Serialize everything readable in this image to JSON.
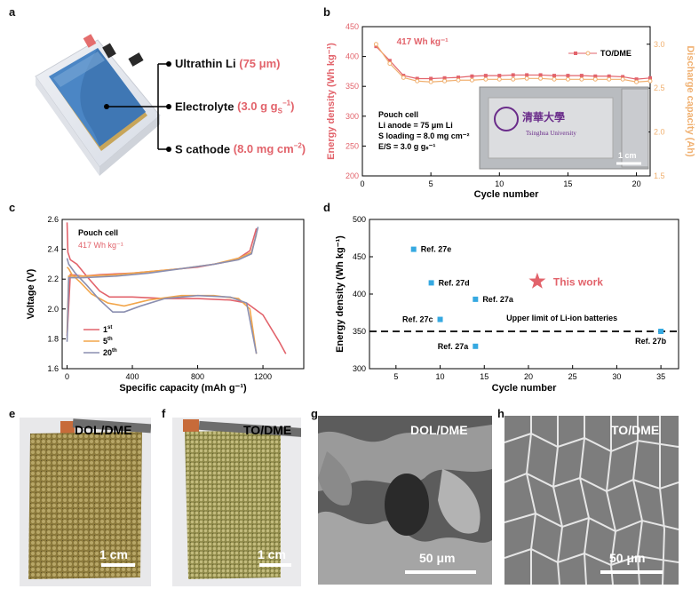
{
  "panel_letters": {
    "a": "a",
    "b": "b",
    "c": "c",
    "d": "d",
    "e": "e",
    "f": "f",
    "g": "g",
    "h": "h"
  },
  "panel_a": {
    "labels": [
      {
        "name": "Ultrathin Li",
        "value": "(75 μm)"
      },
      {
        "name": "Electrolyte",
        "value": "(3.0 g g",
        "sub": "S",
        "sup": "−1",
        "close": ")"
      },
      {
        "name": "S cathode",
        "value": "(8.0 mg cm",
        "sup": "−2",
        "close": ")"
      }
    ]
  },
  "colors": {
    "red": "#e2636b",
    "orange": "#f0b070",
    "blue_orange": "#f2a64b",
    "gray": "#8b8fb0",
    "cyan": "#36a9e1",
    "black": "#000000"
  },
  "chart_data": [
    {
      "id": "b",
      "type": "line",
      "title": "",
      "xlabel": "Cycle number",
      "ylabel": "Energy density (Wh kg⁻¹)",
      "y2label": "Discharge capacity (Ah)",
      "xlim": [
        0,
        21
      ],
      "ylim": [
        200,
        450
      ],
      "y2lim": [
        1.5,
        3.2
      ],
      "xticks": [
        0,
        5,
        10,
        15,
        20
      ],
      "yticks": [
        200,
        250,
        300,
        350,
        400,
        450
      ],
      "y2ticks": [
        1.5,
        2.0,
        2.5,
        3.0
      ],
      "annotation": "417 Wh kg⁻¹",
      "legend": "TO/DME",
      "inset_text": [
        "Pouch cell",
        "Li anode = 75 μm Li",
        "S loading = 8.0 mg cm⁻²",
        "E/S = 3.0 g gₛ⁻¹"
      ],
      "photo_text": [
        "清華大學",
        "Tsinghua University",
        "1 cm"
      ],
      "series": [
        {
          "name": "Energy density",
          "axis": "left",
          "x": [
            1,
            2,
            3,
            4,
            5,
            6,
            7,
            8,
            9,
            10,
            11,
            12,
            13,
            14,
            15,
            16,
            17,
            18,
            19,
            20,
            21
          ],
          "values": [
            417,
            393,
            368,
            363,
            363,
            364,
            365,
            367,
            368,
            368,
            369,
            369,
            369,
            368,
            368,
            368,
            367,
            367,
            366,
            362,
            364
          ]
        },
        {
          "name": "Discharge capacity",
          "axis": "right",
          "x": [
            1,
            2,
            3,
            4,
            5,
            6,
            7,
            8,
            9,
            10,
            11,
            12,
            13,
            14,
            15,
            16,
            17,
            18,
            19,
            20,
            21
          ],
          "values": [
            3.0,
            2.78,
            2.62,
            2.58,
            2.57,
            2.58,
            2.59,
            2.59,
            2.6,
            2.6,
            2.6,
            2.61,
            2.61,
            2.6,
            2.6,
            2.6,
            2.6,
            2.6,
            2.6,
            2.57,
            2.58
          ]
        }
      ]
    },
    {
      "id": "c",
      "type": "line",
      "xlabel": "Specific capacity (mAh g⁻¹)",
      "ylabel": "Voltage (V)",
      "xlim": [
        -30,
        1450
      ],
      "ylim": [
        1.6,
        2.6
      ],
      "xticks": [
        0,
        400,
        800,
        1200
      ],
      "yticks": [
        1.6,
        1.8,
        2.0,
        2.2,
        2.4,
        2.6
      ],
      "text": [
        "Pouch cell",
        "417 Wh kg⁻¹"
      ],
      "legend": [
        {
          "name": "1",
          "sup": "st"
        },
        {
          "name": "5",
          "sup": "th"
        },
        {
          "name": "20",
          "sup": "th"
        }
      ],
      "series": [
        {
          "name": "1st discharge",
          "x": [
            0,
            5,
            20,
            60,
            120,
            200,
            260,
            300,
            400,
            600,
            800,
            1000,
            1100,
            1200,
            1300,
            1340
          ],
          "values": [
            2.58,
            2.38,
            2.33,
            2.3,
            2.22,
            2.12,
            2.08,
            2.08,
            2.08,
            2.07,
            2.07,
            2.06,
            2.04,
            1.96,
            1.78,
            1.7
          ]
        },
        {
          "name": "1st charge",
          "x": [
            0,
            20,
            100,
            200,
            400,
            600,
            800,
            950,
            1050,
            1120,
            1160
          ],
          "values": [
            1.82,
            2.23,
            2.22,
            2.23,
            2.24,
            2.26,
            2.28,
            2.31,
            2.34,
            2.39,
            2.54
          ]
        },
        {
          "name": "5th discharge",
          "x": [
            0,
            10,
            30,
            80,
            150,
            250,
            350,
            500,
            700,
            900,
            1050,
            1120,
            1160
          ],
          "values": [
            2.28,
            2.27,
            2.23,
            2.18,
            2.1,
            2.04,
            2.02,
            2.06,
            2.09,
            2.09,
            2.07,
            2.0,
            1.7
          ]
        },
        {
          "name": "5th charge",
          "x": [
            0,
            10,
            100,
            300,
            500,
            700,
            900,
            1050,
            1130,
            1160
          ],
          "values": [
            1.84,
            2.22,
            2.22,
            2.23,
            2.25,
            2.27,
            2.3,
            2.34,
            2.38,
            2.5
          ]
        },
        {
          "name": "20th discharge",
          "x": [
            0,
            10,
            50,
            120,
            200,
            280,
            350,
            450,
            600,
            800,
            1000,
            1100,
            1160
          ],
          "values": [
            2.34,
            2.3,
            2.24,
            2.16,
            2.06,
            1.98,
            1.98,
            2.02,
            2.07,
            2.09,
            2.08,
            2.04,
            1.7
          ]
        },
        {
          "name": "20th charge",
          "x": [
            0,
            10,
            100,
            300,
            500,
            700,
            900,
            1050,
            1130,
            1170
          ],
          "values": [
            1.78,
            2.21,
            2.21,
            2.22,
            2.24,
            2.27,
            2.3,
            2.33,
            2.37,
            2.55
          ]
        }
      ]
    },
    {
      "id": "d",
      "type": "scatter",
      "xlabel": "Cycle number",
      "ylabel": "Energy density (Wh kg⁻¹)",
      "xlim": [
        2,
        37
      ],
      "ylim": [
        300,
        500
      ],
      "xticks": [
        5,
        10,
        15,
        20,
        25,
        30,
        35
      ],
      "yticks": [
        300,
        350,
        400,
        450,
        500
      ],
      "hline": {
        "y": 350,
        "label": "Upper limit of Li-ion batteries"
      },
      "points": [
        {
          "x": 7,
          "y": 460,
          "label": "Ref. 27e",
          "pos": "right"
        },
        {
          "x": 9,
          "y": 415,
          "label": "Ref. 27d",
          "pos": "right"
        },
        {
          "x": 14,
          "y": 393,
          "label": "Ref. 27a",
          "pos": "right"
        },
        {
          "x": 10,
          "y": 366,
          "label": "Ref. 27c",
          "pos": "left"
        },
        {
          "x": 14,
          "y": 330,
          "label": "Ref. 27a",
          "pos": "left"
        },
        {
          "x": 35,
          "y": 350,
          "label": "Ref. 27b",
          "pos": "below-left"
        }
      ],
      "highlight": {
        "x": 21,
        "y": 417,
        "label": "This work"
      }
    }
  ],
  "photos": {
    "e": {
      "label": "DOL/DME",
      "scale": "1 cm"
    },
    "f": {
      "label": "TO/DME",
      "scale": "1 cm"
    },
    "g": {
      "label": "DOL/DME",
      "scale": "50 μm"
    },
    "h": {
      "label": "TO/DME",
      "scale": "50 μm"
    }
  }
}
